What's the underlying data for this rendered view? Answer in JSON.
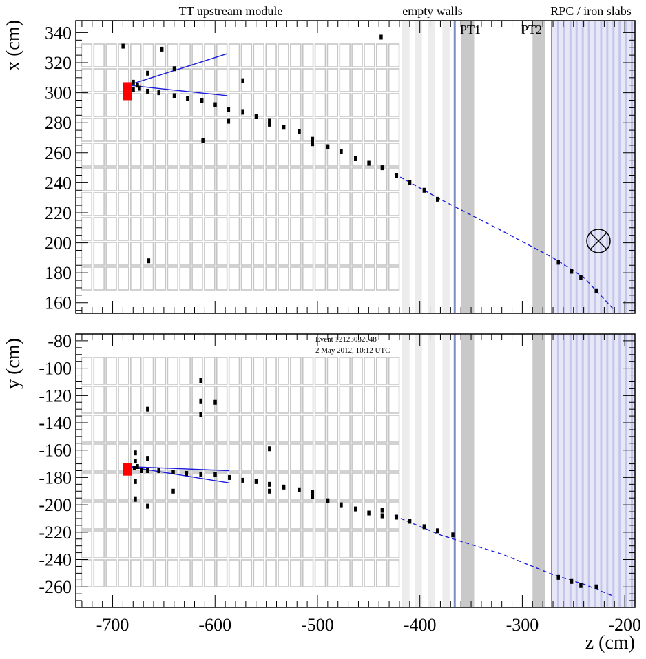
{
  "chart_data": [
    {
      "type": "scatter",
      "panel": "top",
      "ylabel": "x (cm)",
      "xlabel": "",
      "xlim": [
        -736,
        -190
      ],
      "ylim": [
        153,
        348
      ],
      "x_ticks": [
        "-700",
        "-600",
        "-500",
        "-400",
        "-300",
        "-200"
      ],
      "y_ticks": [
        "160",
        "180",
        "200",
        "220",
        "240",
        "260",
        "280",
        "300",
        "320",
        "340"
      ],
      "y_tick_values": [
        160,
        180,
        200,
        220,
        240,
        260,
        280,
        300,
        320,
        340
      ],
      "region_labels": {
        "tt": "TT upstream module",
        "walls": "empty walls",
        "rpc": "RPC / iron slabs",
        "pt1": "PT1",
        "pt2": "PT2"
      },
      "vertex": {
        "z": -685,
        "value": 301
      },
      "tracks": [
        {
          "from": [
            -685,
            305
          ],
          "to": [
            -588,
            326
          ]
        },
        {
          "from": [
            -685,
            305
          ],
          "to": [
            -588,
            298
          ]
        }
      ],
      "fitted_track": {
        "points": [
          [
            -425,
            246
          ],
          [
            -380,
            229
          ],
          [
            -320,
            208
          ],
          [
            -270,
            190
          ],
          [
            -240,
            177
          ],
          [
            -210,
            155
          ]
        ]
      },
      "hits": [
        [
          -690,
          331
        ],
        [
          -680,
          307
        ],
        [
          -676,
          305
        ],
        [
          -674,
          303
        ],
        [
          -680,
          302
        ],
        [
          -666,
          313
        ],
        [
          -652,
          329
        ],
        [
          -666,
          301
        ],
        [
          -655,
          300
        ],
        [
          -640,
          316
        ],
        [
          -640,
          298
        ],
        [
          -627,
          296
        ],
        [
          -613,
          295
        ],
        [
          -600,
          292
        ],
        [
          -587,
          289
        ],
        [
          -587,
          281
        ],
        [
          -573,
          308
        ],
        [
          -573,
          287
        ],
        [
          -560,
          284
        ],
        [
          -547,
          281
        ],
        [
          -547,
          279
        ],
        [
          -533,
          277
        ],
        [
          -518,
          274
        ],
        [
          -505,
          269
        ],
        [
          -505,
          266
        ],
        [
          -490,
          264
        ],
        [
          -477,
          261
        ],
        [
          -463,
          256
        ],
        [
          -450,
          253
        ],
        [
          -437,
          250
        ],
        [
          -423,
          245
        ],
        [
          -410,
          240
        ],
        [
          -396,
          235
        ],
        [
          -383,
          229
        ],
        [
          -612,
          268
        ],
        [
          -665,
          188
        ],
        [
          -438,
          337
        ],
        [
          -265,
          187
        ],
        [
          -252,
          181
        ],
        [
          -243,
          177
        ],
        [
          -228,
          168
        ]
      ],
      "magnetic_field_symbol": "⊗"
    },
    {
      "type": "scatter",
      "panel": "bottom",
      "ylabel": "y (cm)",
      "xlabel": "z (cm)",
      "xlim": [
        -736,
        -190
      ],
      "ylim": [
        -275,
        -75
      ],
      "x_ticks": [
        "-700",
        "-600",
        "-500",
        "-400",
        "-300",
        "-200"
      ],
      "x_tick_values": [
        -700,
        -600,
        -500,
        -400,
        -300,
        -200
      ],
      "y_ticks": [
        "-80",
        "-100",
        "-120",
        "-140",
        "-160",
        "-180",
        "-200",
        "-220",
        "-240",
        "-260"
      ],
      "y_tick_values": [
        -80,
        -100,
        -120,
        -140,
        -160,
        -180,
        -200,
        -220,
        -240,
        -260
      ],
      "event_info": [
        "Event 12123032048",
        "2 May 2012, 10:12 UTC"
      ],
      "vertex": {
        "z": -685,
        "value": -176
      },
      "tracks": [
        {
          "from": [
            -685,
            -172
          ],
          "to": [
            -586,
            -175
          ]
        },
        {
          "from": [
            -685,
            -172
          ],
          "to": [
            -586,
            -184
          ]
        }
      ],
      "fitted_track": {
        "points": [
          [
            -425,
            -208
          ],
          [
            -380,
            -222
          ],
          [
            -320,
            -236
          ],
          [
            -270,
            -251
          ],
          [
            -240,
            -258
          ],
          [
            -210,
            -267
          ]
        ]
      },
      "hits": [
        [
          -678,
          -162
        ],
        [
          -678,
          -168
        ],
        [
          -679,
          -173
        ],
        [
          -676,
          -172
        ],
        [
          -672,
          -175
        ],
        [
          -666,
          -175
        ],
        [
          -655,
          -175
        ],
        [
          -641,
          -176
        ],
        [
          -628,
          -177
        ],
        [
          -614,
          -178
        ],
        [
          -600,
          -178
        ],
        [
          -586,
          -180
        ],
        [
          -573,
          -182
        ],
        [
          -560,
          -183
        ],
        [
          -547,
          -185
        ],
        [
          -547,
          -190
        ],
        [
          -533,
          -187
        ],
        [
          -518,
          -189
        ],
        [
          -505,
          -191
        ],
        [
          -505,
          -194
        ],
        [
          -490,
          -197
        ],
        [
          -477,
          -200
        ],
        [
          -463,
          -203
        ],
        [
          -450,
          -206
        ],
        [
          -437,
          -208
        ],
        [
          -437,
          -204
        ],
        [
          -423,
          -209
        ],
        [
          -410,
          -212
        ],
        [
          -396,
          -216
        ],
        [
          -383,
          -219
        ],
        [
          -368,
          -222
        ],
        [
          -614,
          -109
        ],
        [
          -614,
          -124
        ],
        [
          -614,
          -134
        ],
        [
          -600,
          -125
        ],
        [
          -666,
          -130
        ],
        [
          -547,
          -159
        ],
        [
          -678,
          -183
        ],
        [
          -678,
          -196
        ],
        [
          -666,
          -201
        ],
        [
          -641,
          -190
        ],
        [
          -666,
          -166
        ],
        [
          -265,
          -253
        ],
        [
          -252,
          -256
        ],
        [
          -243,
          -259
        ],
        [
          -228,
          -260
        ]
      ]
    }
  ]
}
